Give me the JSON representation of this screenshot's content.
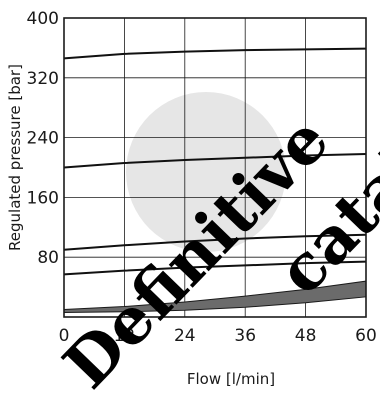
{
  "chart_data": {
    "type": "line",
    "title": "",
    "xlabel": "Flow [l/min]",
    "ylabel": "Regulated pressure [bar]",
    "xlim": [
      0,
      60
    ],
    "ylim": [
      0,
      400
    ],
    "xticks": [
      "0",
      "12",
      "24",
      "36",
      "48",
      "60"
    ],
    "yticks": [
      "80",
      "160",
      "240",
      "320",
      "400"
    ],
    "grid": true,
    "series": [
      {
        "x": [
          0,
          12,
          24,
          36,
          48,
          60
        ],
        "y": [
          346,
          352,
          355,
          357,
          358,
          359
        ]
      },
      {
        "x": [
          0,
          12,
          24,
          36,
          48,
          60
        ],
        "y": [
          200,
          206,
          210,
          213,
          216,
          218
        ]
      },
      {
        "x": [
          0,
          12,
          24,
          36,
          48,
          60
        ],
        "y": [
          90,
          96,
          101,
          105,
          108,
          110
        ]
      },
      {
        "x": [
          0,
          12,
          24,
          36,
          48,
          60
        ],
        "y": [
          57,
          62,
          66,
          69,
          72,
          74
        ]
      }
    ],
    "band": {
      "x": [
        0,
        12,
        24,
        36,
        48,
        60
      ],
      "upper": [
        10,
        14,
        20,
        28,
        37,
        48
      ],
      "lower": [
        6,
        7,
        9,
        13,
        19,
        27
      ],
      "color": "#6b6b6b"
    },
    "watermark": {
      "words": [
        "Definitive",
        "catalogue"
      ],
      "circle_color": "#e6e6e6"
    }
  }
}
